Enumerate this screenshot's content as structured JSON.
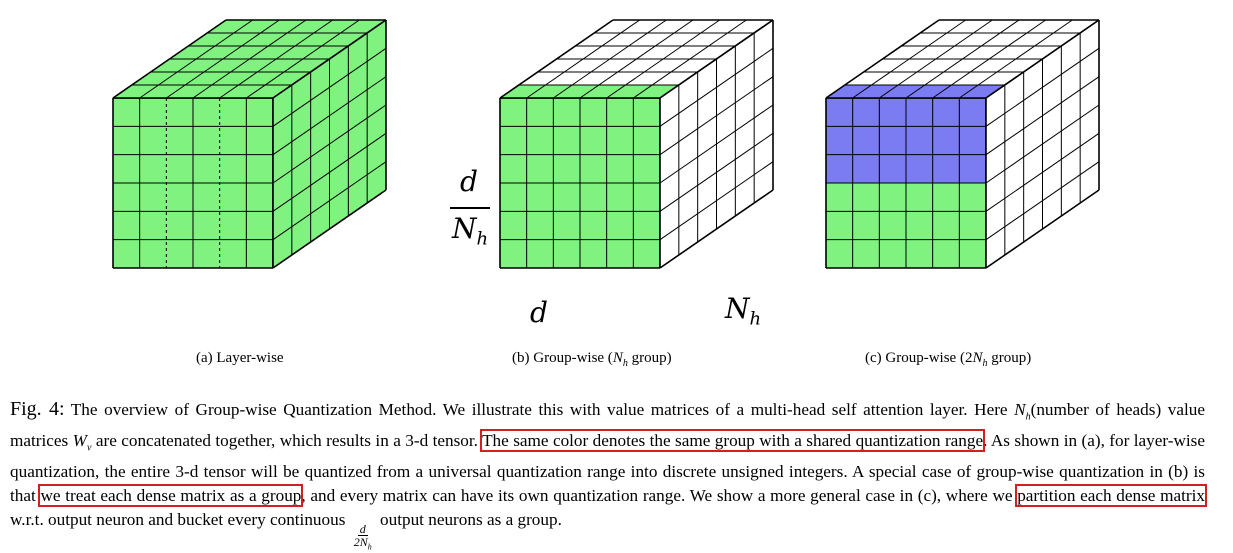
{
  "subfigures": [
    {
      "label": "(a) Layer-wise",
      "suffix": ""
    },
    {
      "label": "(b) Group-wise (",
      "math": "N",
      "sub": "h",
      "suffix": " group)"
    },
    {
      "label": "(c) Group-wise (2",
      "math": "N",
      "sub": "h",
      "suffix": " group)"
    }
  ],
  "cube_labels": {
    "frac_num": "d",
    "frac_den": "N",
    "frac_den_sub": "h",
    "bottom_left": "d",
    "bottom_right": "N",
    "bottom_right_sub": "h"
  },
  "colors": {
    "green": "#7ff27f",
    "blue": "#7b7bf2",
    "white": "#ffffff",
    "highlight": "#d21f1f"
  },
  "caption": {
    "label": "Fig. 4:",
    "t1": " The overview of Group-wise Quantization Method. We illustrate this with value matrices of a multi-head self attention layer. Here ",
    "m1": "N",
    "m1_sub": "h",
    "t2": "(number of heads) value matrices ",
    "m2": "W",
    "m2_sub": "v",
    "t3": " are concatenated together, which results in a 3-d tensor. ",
    "h1": "The same color denotes the same group with a shared quantization range",
    "t4": ". As shown in (a), for layer-wise quantization, the entire 3-d tensor will be quantized from a universal quantization range into discrete unsigned integers. A special case of group-wise quantization in (b) is that ",
    "h2": "we treat each dense matrix as a group",
    "t5": ", and every matrix can have its own quantization range. We show a more general case in (c), where we ",
    "h3": "partition each dense matrix",
    "t6": " w.r.t. output neuron and bucket every continuous ",
    "frac_num": "d",
    "frac_den": "2N",
    "frac_den_sub": "h",
    "t7": " output neurons as a group."
  }
}
